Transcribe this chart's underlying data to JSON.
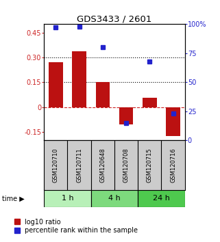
{
  "title": "GDS3433 / 2601",
  "samples": [
    "GSM120710",
    "GSM120711",
    "GSM120648",
    "GSM120708",
    "GSM120715",
    "GSM120716"
  ],
  "log10_ratio": [
    0.27,
    0.335,
    0.15,
    -0.105,
    0.055,
    -0.175
  ],
  "percentile_rank": [
    97,
    98,
    80,
    15,
    68,
    23
  ],
  "groups": [
    {
      "label": "1 h",
      "color": "#b8f0b8",
      "start": 0,
      "end": 2
    },
    {
      "label": "4 h",
      "color": "#7dda7d",
      "start": 2,
      "end": 4
    },
    {
      "label": "24 h",
      "color": "#4ec94e",
      "start": 4,
      "end": 6
    }
  ],
  "bar_color": "#bb1111",
  "dot_color": "#2222cc",
  "ylim_left": [
    -0.2,
    0.5
  ],
  "ylim_right": [
    0,
    100
  ],
  "yticks_left": [
    -0.15,
    0,
    0.15,
    0.3,
    0.45
  ],
  "yticks_right": [
    0,
    25,
    50,
    75,
    100
  ],
  "ytick_labels_left": [
    "-0.15",
    "0",
    "0.15",
    "0.30",
    "0.45"
  ],
  "ytick_labels_right": [
    "0",
    "25",
    "50",
    "75",
    "100%"
  ],
  "hlines_dotted": [
    0.15,
    0.3
  ],
  "hline_dashed": 0,
  "legend_items": [
    "log10 ratio",
    "percentile rank within the sample"
  ],
  "background_color": "#ffffff",
  "plot_bg": "#ffffff",
  "sample_box_color": "#cccccc"
}
